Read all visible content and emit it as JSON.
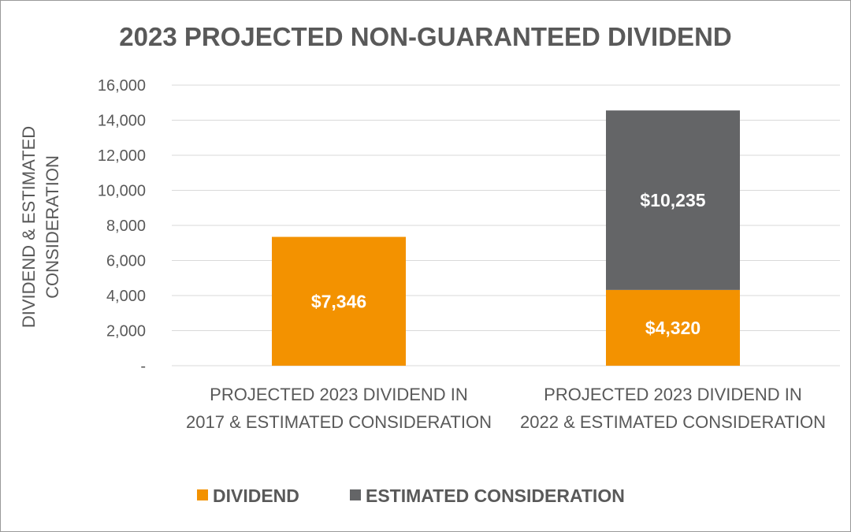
{
  "chart_data": {
    "type": "bar",
    "stacked": true,
    "title": "2023 PROJECTED NON-GUARANTEED DIVIDEND",
    "xlabel": "",
    "ylabel": "DIVIDEND & ESTIMATED CONSIDERATION",
    "ylim": [
      0,
      16000
    ],
    "yticks": [
      0,
      2000,
      4000,
      6000,
      8000,
      10000,
      12000,
      14000,
      16000
    ],
    "ytick_labels": [
      "-",
      "2,000",
      "4,000",
      "6,000",
      "8,000",
      "10,000",
      "12,000",
      "14,000",
      "16,000"
    ],
    "grid": true,
    "legend_position": "bottom",
    "categories": [
      "PROJECTED 2023 DIVIDEND IN 2017 & ESTIMATED CONSIDERATION",
      "PROJECTED 2023 DIVIDEND IN 2022 & ESTIMATED CONSIDERATION"
    ],
    "series": [
      {
        "name": "DIVIDEND",
        "color": "#F39200",
        "values": [
          7346,
          4320
        ],
        "labels": [
          "$7,346",
          "$4,320"
        ]
      },
      {
        "name": "ESTIMATED CONSIDERATION",
        "color": "#646567",
        "values": [
          0,
          10235
        ],
        "labels": [
          "",
          "$10,235"
        ]
      }
    ]
  }
}
